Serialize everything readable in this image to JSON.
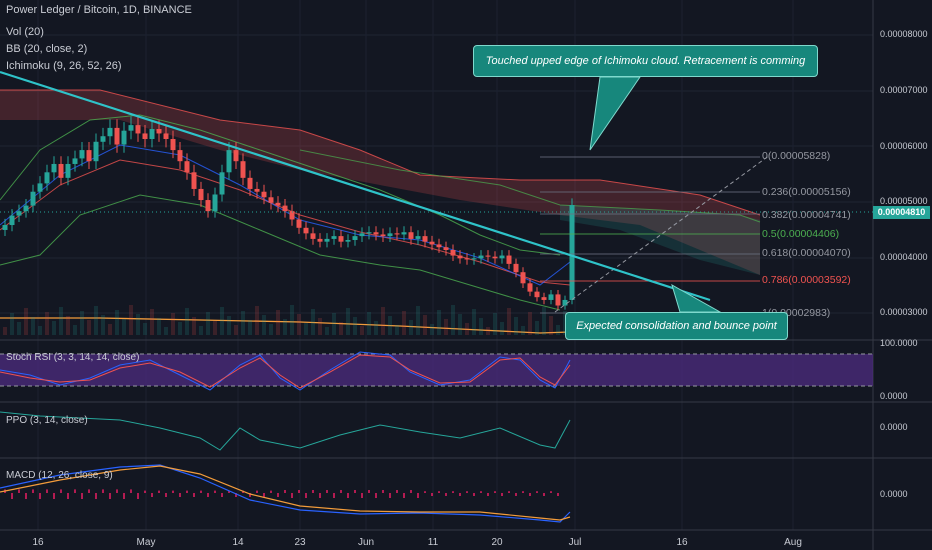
{
  "header": {
    "title": "Power Ledger / Bitcoin, 1D, BINANCE",
    "indicators": [
      "Vol (20)",
      "BB (20, close, 2)",
      "Ichimoku (9, 26, 52, 26)"
    ]
  },
  "panes": {
    "stoch_label": "Stoch RSI (3, 3, 14, 14, close)",
    "ppo_label": "PPO (3, 14, close)",
    "macd_label": "MACD (12, 26, close, 9)"
  },
  "price_axis": [
    "0.00008000",
    "0.00007000",
    "0.00006000",
    "0.00005000",
    "0.00004000",
    "0.00003000"
  ],
  "last_price": "0.00004810",
  "stoch_axis": [
    "100.0000",
    "0.0000"
  ],
  "ppo_axis": [
    "0.0000"
  ],
  "macd_axis": [
    "0.0000"
  ],
  "time_axis": [
    "16",
    "May",
    "14",
    "23",
    "Jun",
    "11",
    "20",
    "Jul",
    "16",
    "Aug"
  ],
  "fib_levels": [
    {
      "label": "0(0.00005828)",
      "color": "#9598a1"
    },
    {
      "label": "0.236(0.00005156)",
      "color": "#9598a1"
    },
    {
      "label": "0.382(0.00004741)",
      "color": "#9598a1"
    },
    {
      "label": "0.5(0.00004406)",
      "color": "#4caf50"
    },
    {
      "label": "0.618(0.00004070)",
      "color": "#9598a1"
    },
    {
      "label": "0.786(0.00003592)",
      "color": "#ef5350"
    },
    {
      "label": "1(0.00002983)",
      "color": "#9598a1"
    }
  ],
  "annotations": {
    "top": "Touched upped edge of Ichimoku cloud. Retracement is comming",
    "bottom": "Expected consolidation and bounce point"
  },
  "colors": {
    "background": "#131722",
    "up": "#26a69a",
    "down": "#ef5350",
    "trendline": "#2fc3c9",
    "stoch_band": "#4a2a7a"
  },
  "chart_data": {
    "type": "candlestick",
    "close_series": [
      4.45e-05,
      4.62e-05,
      4.7e-05,
      4.8e-05,
      5.05e-05,
      5.2e-05,
      5.4e-05,
      5.55e-05,
      5.3e-05,
      5.55e-05,
      5.65e-05,
      5.8e-05,
      5.6e-05,
      5.95e-05,
      6.05e-05,
      6.2e-05,
      5.9e-05,
      6.15e-05,
      6.25e-05,
      6.1e-05,
      6e-05,
      6.18e-05,
      6.1e-05,
      6e-05,
      5.8e-05,
      5.6e-05,
      5.4e-05,
      5.1e-05,
      4.9e-05,
      4.7e-05,
      5e-05,
      5.4e-05,
      5.8e-05,
      5.6e-05,
      5.3e-05,
      5.1e-05,
      5.05e-05,
      4.95e-05,
      4.85e-05,
      4.8e-05,
      4.7e-05,
      4.55e-05,
      4.4e-05,
      4.3e-05,
      4.2e-05,
      4.15e-05,
      4.2e-05,
      4.25e-05,
      4.15e-05,
      4.18e-05,
      4.25e-05,
      4.3e-05,
      4.32e-05,
      4.28e-05,
      4.25e-05,
      4.3e-05,
      4.28e-05,
      4.32e-05,
      4.2e-05,
      4.25e-05,
      4.15e-05,
      4.1e-05,
      4.05e-05,
      4e-05,
      3.9e-05,
      3.85e-05,
      3.83e-05,
      3.85e-05,
      3.9e-05,
      3.88e-05,
      3.85e-05,
      3.9e-05,
      3.75e-05,
      3.6e-05,
      3.4e-05,
      3.25e-05,
      3.15e-05,
      3.1e-05,
      3.2e-05,
      3e-05,
      3.1e-05,
      4.81e-05
    ],
    "ylim": [
      2.9e-05,
      8.3e-05
    ]
  }
}
